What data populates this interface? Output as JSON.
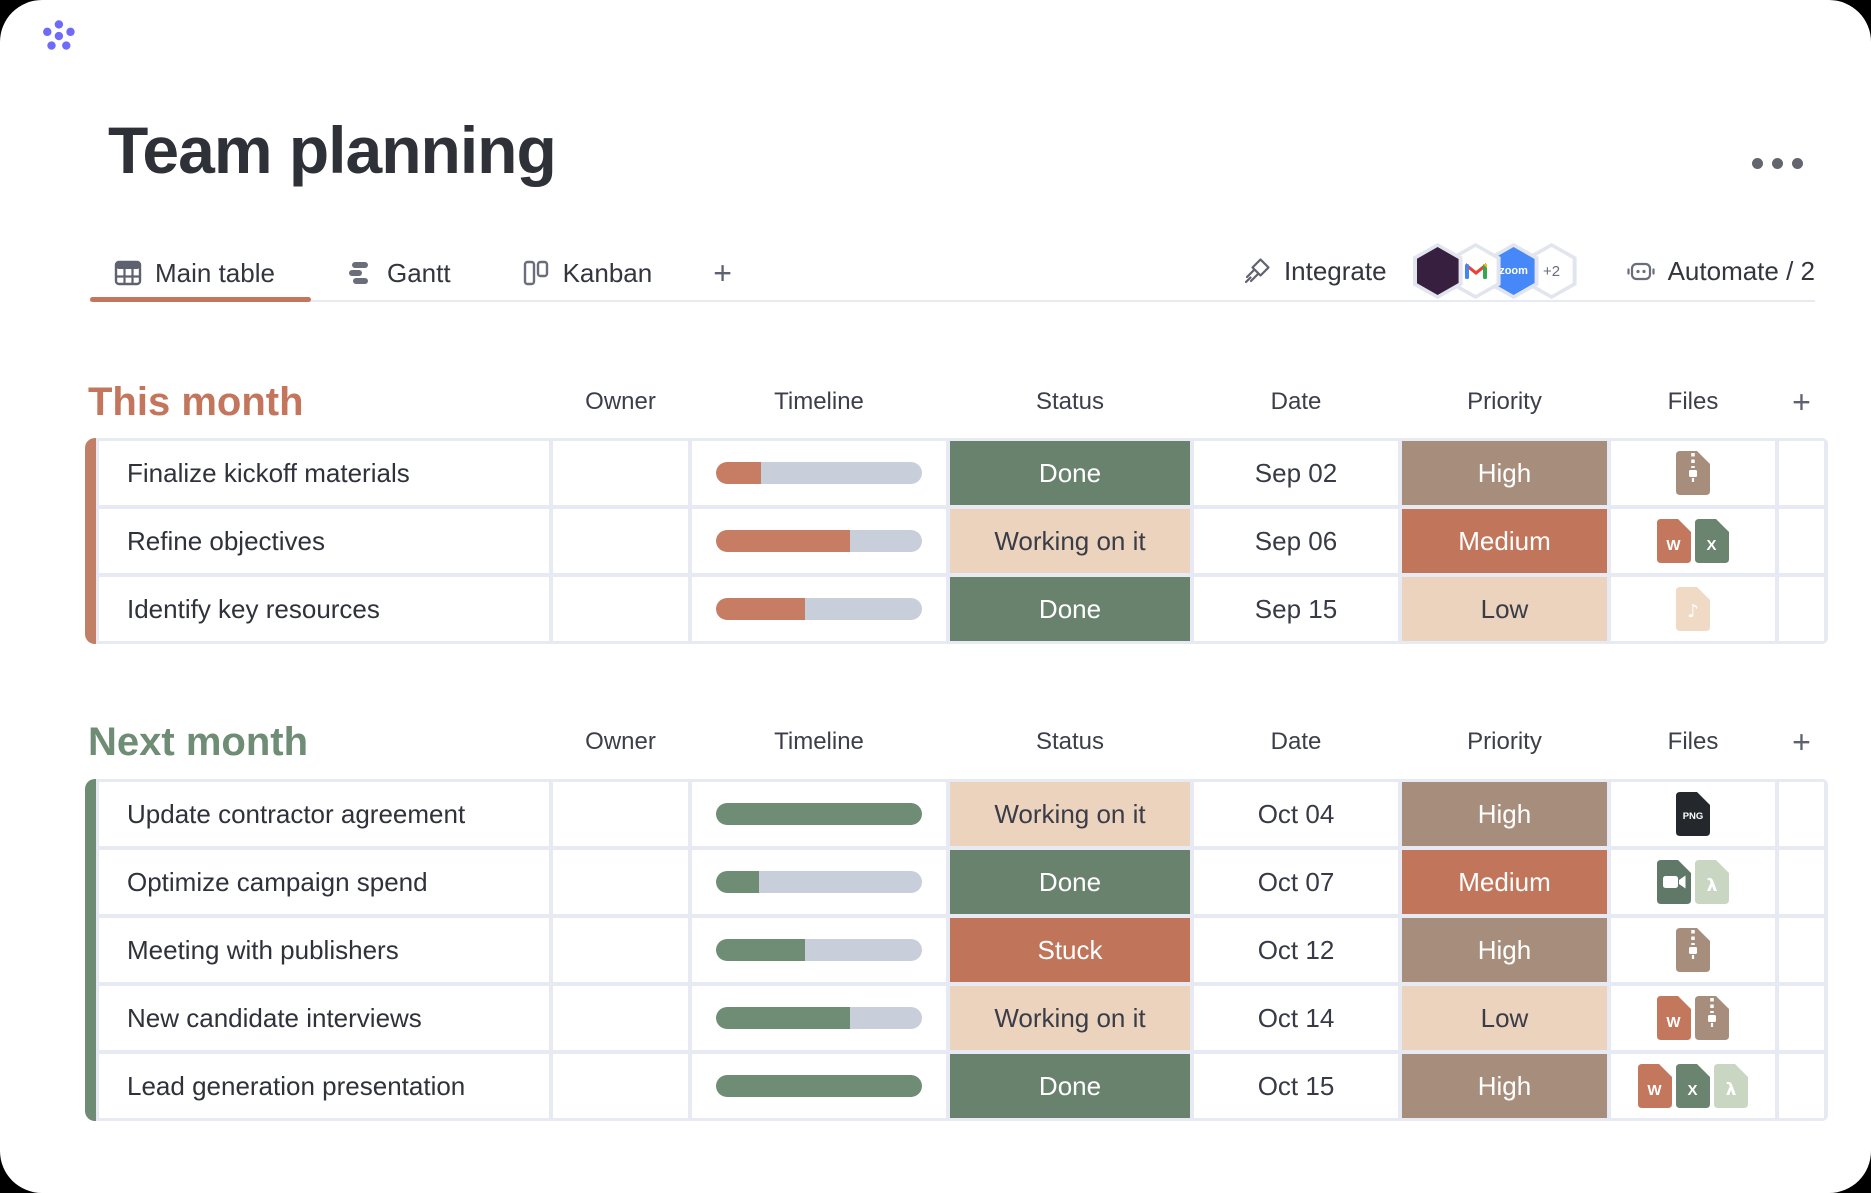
{
  "header": {
    "title": "Team planning"
  },
  "tabs": {
    "items": [
      {
        "label": "Main table",
        "active": true
      },
      {
        "label": "Gantt",
        "active": false
      },
      {
        "label": "Kanban",
        "active": false
      }
    ],
    "add_label": "+"
  },
  "toolbar": {
    "integrate_label": "Integrate",
    "automate_label": "Automate / 2",
    "badges": [
      {
        "name": "brand-hexagon",
        "color": "#37203F",
        "label": ""
      },
      {
        "name": "gmail",
        "color": "#FFFFFF",
        "label": ""
      },
      {
        "name": "zoom",
        "color": "#4688F7",
        "label": "zoom"
      },
      {
        "name": "more",
        "color": "#FFFFFF",
        "label": "+2"
      }
    ]
  },
  "table": {
    "columns": [
      "Owner",
      "Timeline",
      "Status",
      "Date",
      "Priority",
      "Files"
    ],
    "add_column_label": "+"
  },
  "groups": [
    {
      "title": "This month",
      "accent": "#C07F66",
      "title_color": "#C4765C",
      "timeline_fill": "#C77D64",
      "rows": [
        {
          "task": "Finalize kickoff materials",
          "timeline_pct": 22,
          "status": "Done",
          "date": "Sep 02",
          "priority": "High",
          "files": [
            {
              "kind": "zip"
            }
          ]
        },
        {
          "task": "Refine objectives",
          "timeline_pct": 65,
          "status": "Working on it",
          "date": "Sep 06",
          "priority": "Medium",
          "files": [
            {
              "kind": "word"
            },
            {
              "kind": "excel"
            }
          ]
        },
        {
          "task": "Identify key resources",
          "timeline_pct": 43,
          "status": "Done",
          "date": "Sep 15",
          "priority": "Low",
          "files": [
            {
              "kind": "music"
            }
          ]
        }
      ]
    },
    {
      "title": "Next month",
      "accent": "#6E8B74",
      "title_color": "#6F8C75",
      "timeline_fill": "#6F8C75",
      "rows": [
        {
          "task": "Update contractor agreement",
          "timeline_pct": 100,
          "status": "Working on it",
          "date": "Oct 04",
          "priority": "High",
          "files": [
            {
              "kind": "png"
            }
          ]
        },
        {
          "task": "Optimize campaign spend",
          "timeline_pct": 21,
          "status": "Done",
          "date": "Oct 07",
          "priority": "Medium",
          "files": [
            {
              "kind": "video"
            },
            {
              "kind": "pdf"
            }
          ]
        },
        {
          "task": "Meeting with publishers",
          "timeline_pct": 43,
          "status": "Stuck",
          "date": "Oct 12",
          "priority": "High",
          "files": [
            {
              "kind": "zip"
            }
          ]
        },
        {
          "task": "New candidate interviews",
          "timeline_pct": 65,
          "status": "Working on it",
          "date": "Oct 14",
          "priority": "Low",
          "files": [
            {
              "kind": "word"
            },
            {
              "kind": "zip"
            }
          ]
        },
        {
          "task": "Lead generation presentation",
          "timeline_pct": 100,
          "status": "Done",
          "date": "Oct 15",
          "priority": "High",
          "files": [
            {
              "kind": "word"
            },
            {
              "kind": "excel"
            },
            {
              "kind": "pdf"
            }
          ]
        }
      ]
    }
  ],
  "styles": {
    "status": {
      "Done": {
        "bg": "#69826E",
        "fg": "#FFFFFF"
      },
      "Working on it": {
        "bg": "#EBD3BE",
        "fg": "#3A3D48"
      },
      "Stuck": {
        "bg": "#C0755B",
        "fg": "#FFFFFF"
      }
    },
    "priority": {
      "High": {
        "bg": "#A78E7C",
        "fg": "#FFFFFF"
      },
      "Medium": {
        "bg": "#C1765B",
        "fg": "#FFFFFF"
      },
      "Low": {
        "bg": "#EBD3BE",
        "fg": "#3A3D48"
      }
    },
    "files": {
      "zip": {
        "bg": "#A78E7C",
        "label": ""
      },
      "word": {
        "bg": "#C3775C",
        "label": "W"
      },
      "excel": {
        "bg": "#6A846F",
        "label": "X"
      },
      "music": {
        "bg": "#F0DAC6",
        "label": "♪"
      },
      "png": {
        "bg": "#24272B",
        "label": "PNG"
      },
      "video": {
        "bg": "#5F7867",
        "label": ""
      },
      "pdf": {
        "bg": "#C9D7C2",
        "label": "λ"
      }
    }
  },
  "colors": {
    "tab_underline": "#C4765C",
    "timeline_track": "#C9CEDB",
    "grid_border": "#E7EAF3",
    "logo_purple": "#6E6BFA",
    "icon_gray": "#666B79"
  }
}
